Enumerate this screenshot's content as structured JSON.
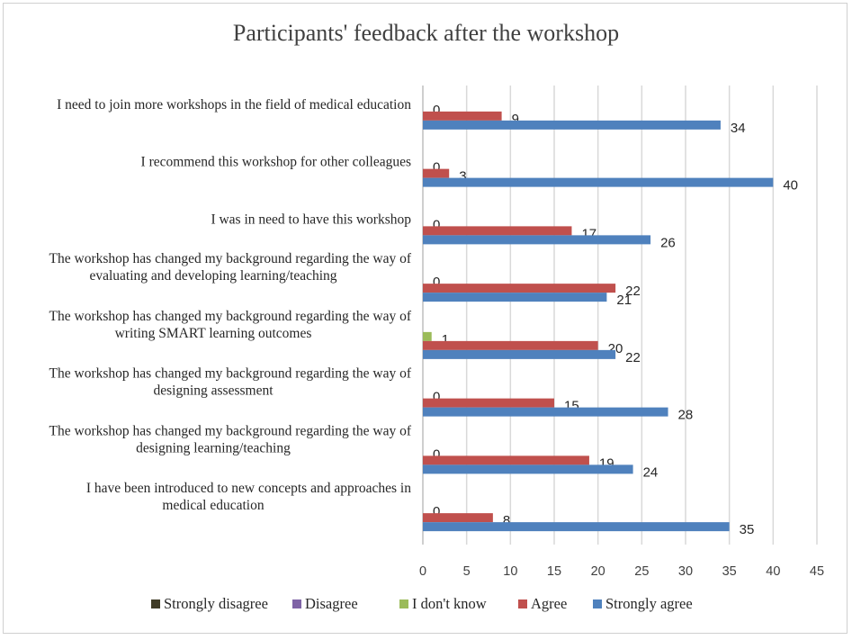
{
  "chart_data": {
    "type": "bar",
    "orientation": "horizontal",
    "title": "Participants' feedback after the workshop",
    "categories": [
      [
        "I need to join more workshops in the field of medical education"
      ],
      [
        "I recommend this workshop for other colleagues"
      ],
      [
        "I was in need to have this workshop"
      ],
      [
        "The workshop has changed my background regarding the way of",
        "evaluating and developing learning/teaching"
      ],
      [
        "The workshop has changed my background regarding the way of",
        "writing SMART learning outcomes"
      ],
      [
        "The workshop has changed my background regarding the way of",
        "designing assessment"
      ],
      [
        "The workshop has changed my background regarding the way of",
        "designing learning/teaching"
      ],
      [
        "I have been introduced to new concepts and approaches in",
        "medical education"
      ]
    ],
    "series": [
      {
        "name": "Strongly disagree",
        "color": "#3f3b26",
        "values": [
          null,
          null,
          null,
          null,
          null,
          null,
          null,
          null
        ]
      },
      {
        "name": "Disagree",
        "color": "#7f63a6",
        "values": [
          null,
          null,
          null,
          null,
          null,
          null,
          null,
          null
        ]
      },
      {
        "name": "I don't know",
        "color": "#9bbb59",
        "values": [
          0,
          0,
          0,
          0,
          1,
          0,
          0,
          0
        ]
      },
      {
        "name": "Agree",
        "color": "#c0504d",
        "values": [
          9,
          3,
          17,
          22,
          20,
          15,
          19,
          8
        ]
      },
      {
        "name": "Strongly agree",
        "color": "#4f81bd",
        "values": [
          34,
          40,
          26,
          21,
          22,
          28,
          24,
          35
        ]
      }
    ],
    "xlim": [
      0,
      45
    ],
    "xticks": [
      "0",
      "5",
      "10",
      "15",
      "20",
      "25",
      "30",
      "35",
      "40",
      "45"
    ],
    "grid": true,
    "legend_position": "bottom"
  }
}
